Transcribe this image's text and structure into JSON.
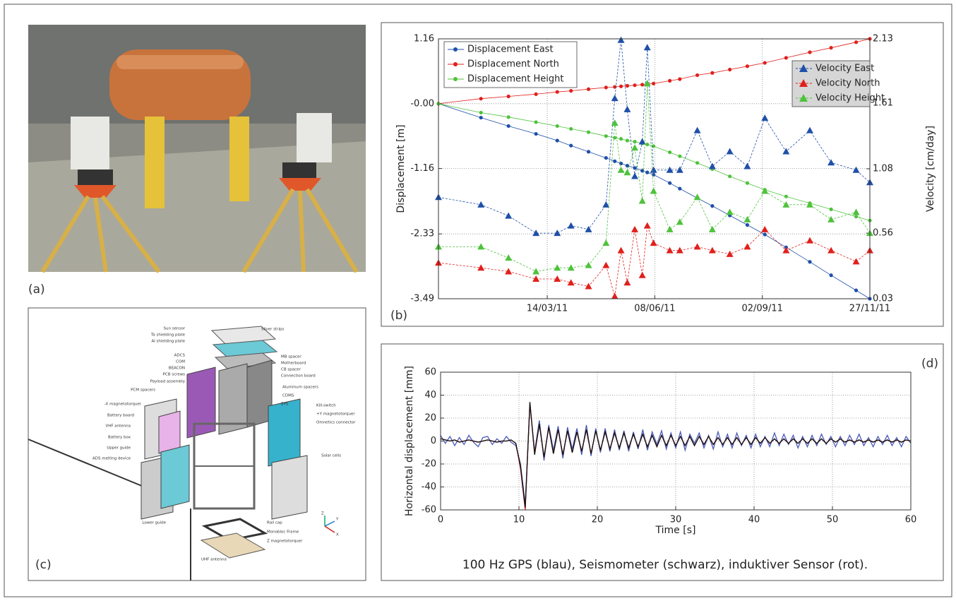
{
  "panel_labels": [
    "(a)",
    "(b)",
    "(c)",
    "(d)"
  ],
  "diagram": {
    "labels": [
      "Sun sensor",
      "Ta shielding plate",
      "Al shielding plate",
      "ADCS",
      "COM",
      "BEACON",
      "PCB screws",
      "Payload assembly",
      "PCM spacers",
      "-X magnetotorquer",
      "Battery board",
      "VHF antenna",
      "Battery box",
      "Upper guide",
      "ADS melting device",
      "Lower guide",
      "Silver strips",
      "MB spacer",
      "Motherboard",
      "CB spacer",
      "Connection board",
      "Aluminum spacers",
      "CDMS",
      "EPS",
      "Kill-switch",
      "+Y magnetotorquer",
      "Omnetics connector",
      "Solar cells",
      "Rail cap",
      "Monobloc Frame",
      "Z magnetotorquer",
      "UHF antenna"
    ],
    "axes": [
      "Z",
      "Y",
      "X"
    ]
  },
  "chart_data": [
    {
      "type": "line",
      "ylabel": "Displacement [m]",
      "y2label": "Velocity [cm/day]",
      "x": [
        "17/12/10",
        "20/01/11",
        "11/02/11",
        "05/03/11",
        "22/03/11",
        "02/04/11",
        "16/04/11",
        "30/04/11",
        "07/05/11",
        "12/05/11",
        "17/05/11",
        "23/05/11",
        "29/05/11",
        "02/06/11",
        "07/06/11",
        "20/06/11",
        "28/06/11",
        "12/07/11",
        "24/07/11",
        "07/08/11",
        "21/08/11",
        "04/09/11",
        "21/09/11",
        "10/10/11",
        "27/10/11",
        "16/11/11",
        "27/11/11"
      ],
      "xlim": [
        "17/12/10",
        "27/11/11"
      ],
      "xticks": [
        "14/03/11",
        "08/06/11",
        "02/09/11",
        "27/11/11"
      ],
      "ylim": [
        -3.49,
        1.16
      ],
      "yticks": [
        -3.49,
        -2.33,
        -1.16,
        {
          "value": 0,
          "label": "-0.00"
        },
        1.16
      ],
      "y2lim": [
        0.03,
        2.13
      ],
      "y2ticks": [
        0.03,
        0.56,
        1.08,
        1.61,
        2.13
      ],
      "grid": true,
      "legend": "upper left",
      "legend2": "upper right",
      "series": [
        {
          "name": "Displacement East",
          "color": "#1f4fa8",
          "marker": "circle",
          "values": [
            0,
            -0.25,
            -0.4,
            -0.54,
            -0.66,
            -0.75,
            -0.86,
            -0.97,
            -1.03,
            -1.07,
            -1.11,
            -1.15,
            -1.2,
            -1.23,
            -1.27,
            -1.42,
            -1.52,
            -1.69,
            -1.83,
            -2.0,
            -2.17,
            -2.34,
            -2.57,
            -2.83,
            -3.07,
            -3.34,
            -3.49
          ]
        },
        {
          "name": "Displacement North",
          "color": "#e0201c",
          "marker": "circle",
          "values": [
            0,
            0.09,
            0.13,
            0.17,
            0.21,
            0.23,
            0.26,
            0.29,
            0.3,
            0.31,
            0.32,
            0.33,
            0.34,
            0.35,
            0.36,
            0.41,
            0.44,
            0.51,
            0.55,
            0.61,
            0.67,
            0.73,
            0.82,
            0.92,
            1.0,
            1.1,
            1.16
          ]
        },
        {
          "name": "Displacement Height",
          "color": "#4fc23c",
          "marker": "circle",
          "values": [
            0,
            -0.16,
            -0.24,
            -0.33,
            -0.4,
            -0.45,
            -0.51,
            -0.58,
            -0.61,
            -0.63,
            -0.66,
            -0.68,
            -0.71,
            -0.73,
            -0.76,
            -0.87,
            -0.94,
            -1.06,
            -1.17,
            -1.3,
            -1.42,
            -1.54,
            -1.66,
            -1.78,
            -1.89,
            -2.02,
            -2.09
          ]
        },
        {
          "name": "Velocity East",
          "color": "#1f4fa8",
          "marker": "triangle",
          "axis": "y2",
          "values": [
            0.85,
            0.79,
            0.7,
            0.56,
            0.56,
            0.62,
            0.59,
            0.79,
            1.65,
            2.12,
            1.56,
            1.02,
            1.3,
            2.06,
            1.07,
            1.07,
            1.07,
            1.39,
            1.1,
            1.22,
            1.1,
            1.49,
            1.22,
            1.39,
            1.13,
            1.07,
            0.97
          ]
        },
        {
          "name": "Velocity North",
          "color": "#e0201c",
          "marker": "triangle",
          "axis": "y2",
          "values": [
            0.32,
            0.28,
            0.25,
            0.19,
            0.19,
            0.16,
            0.13,
            0.3,
            0.05,
            0.42,
            0.16,
            0.59,
            0.22,
            0.62,
            0.48,
            0.42,
            0.42,
            0.45,
            0.42,
            0.39,
            0.45,
            0.59,
            0.42,
            0.5,
            0.42,
            0.33,
            0.42
          ]
        },
        {
          "name": "Velocity Height",
          "color": "#4fc23c",
          "marker": "triangle",
          "axis": "y2",
          "values": [
            0.45,
            0.45,
            0.36,
            0.25,
            0.28,
            0.28,
            0.3,
            0.48,
            1.45,
            1.07,
            1.05,
            1.25,
            0.82,
            1.77,
            0.9,
            0.59,
            0.65,
            0.85,
            0.59,
            0.73,
            0.67,
            0.9,
            0.79,
            0.79,
            0.67,
            0.73,
            0.56
          ]
        }
      ]
    },
    {
      "type": "line",
      "ylabel": "Horizontal displacement [mm]",
      "xlabel": "Time [s]",
      "caption": "100 Hz GPS (blau), Seismometer (schwarz), induktiver Sensor (rot).",
      "x": [
        0,
        0.6,
        1.2,
        1.8,
        2.4,
        3,
        3.6,
        4.2,
        4.8,
        5.4,
        6,
        6.6,
        7.2,
        7.8,
        8.4,
        9,
        9.6,
        10.2,
        10.8,
        11.4,
        12,
        12.6,
        13.2,
        13.8,
        14.4,
        15,
        15.6,
        16.2,
        16.8,
        17.4,
        18,
        18.6,
        19.2,
        19.8,
        20.4,
        21,
        21.6,
        22.2,
        22.8,
        23.4,
        24,
        24.6,
        25.2,
        25.8,
        26.4,
        27,
        27.6,
        28.2,
        28.8,
        29.4,
        30,
        30.6,
        31.2,
        31.8,
        32.4,
        33,
        33.6,
        34.2,
        34.8,
        35.4,
        36,
        36.6,
        37.2,
        37.8,
        38.4,
        39,
        39.6,
        40.2,
        40.8,
        41.4,
        42,
        42.6,
        43.2,
        43.8,
        44.4,
        45,
        45.6,
        46.2,
        46.8,
        47.4,
        48,
        48.6,
        49.2,
        49.8,
        50.4,
        51,
        51.6,
        52.2,
        52.8,
        53.4,
        54,
        54.6,
        55.2,
        55.8,
        56.4,
        57,
        57.6,
        58.2,
        58.8,
        59.4,
        60
      ],
      "xlim": [
        0,
        60
      ],
      "xticks": [
        0,
        10,
        20,
        30,
        40,
        50,
        60
      ],
      "ylim": [
        -60,
        60
      ],
      "yticks": [
        -60,
        -40,
        -20,
        0,
        20,
        40,
        60
      ],
      "grid": true,
      "series": [
        {
          "color": "#4a5bb8",
          "values": [
            5,
            -2,
            4,
            -4,
            3,
            -3,
            5,
            -1,
            -5,
            3,
            4,
            -3,
            2,
            -2,
            4,
            -1,
            -4,
            -20,
            -55,
            32,
            -9,
            18,
            -17,
            14,
            -8,
            13,
            -15,
            12,
            -7,
            11,
            -12,
            14,
            -13,
            11,
            -10,
            11,
            -9,
            10,
            -8,
            9,
            -9,
            8,
            -7,
            10,
            -8,
            8,
            -3,
            9,
            -7,
            7,
            -6,
            8,
            -8,
            6,
            -2,
            7,
            -6,
            5,
            -7,
            8,
            -5,
            6,
            -6,
            7,
            -4,
            5,
            -6,
            6,
            -5,
            4,
            -5,
            7,
            -4,
            6,
            -3,
            5,
            -6,
            4,
            -5,
            5,
            -4,
            6,
            -3,
            4,
            -5,
            4,
            -4,
            5,
            -3,
            6,
            -4,
            3,
            -5,
            4,
            -3,
            5,
            -4,
            3,
            -5,
            4,
            -2
          ]
        },
        {
          "color": "#d42020",
          "values": [
            2,
            1,
            0,
            1,
            -1,
            0,
            1,
            0,
            -1,
            0,
            1,
            0,
            -1,
            0,
            0,
            1,
            -2,
            -24,
            -60,
            33,
            -10,
            14,
            -14,
            12,
            -11,
            10,
            -12,
            9,
            -10,
            8,
            -9,
            10,
            -11,
            9,
            -8,
            8,
            -7,
            7,
            -6,
            7,
            -6,
            6,
            -5,
            6,
            -5,
            5,
            -5,
            5,
            -4,
            5,
            -4,
            4,
            -4,
            4,
            -4,
            4,
            -3,
            4,
            -3,
            3,
            -3,
            3,
            -3,
            3,
            -3,
            3,
            -3,
            3,
            -2,
            3,
            -2,
            2,
            -2,
            2,
            -2,
            2,
            -2,
            2,
            -2,
            2,
            -2,
            2,
            -2,
            2,
            -1,
            2,
            -1,
            1,
            -1,
            1,
            -1,
            1,
            -1,
            1,
            -1,
            1,
            -1,
            1,
            -1,
            1,
            0
          ]
        },
        {
          "color": "#111111",
          "values": [
            2,
            1,
            0,
            1,
            -1,
            0,
            1,
            0,
            -1,
            0,
            1,
            0,
            -1,
            0,
            0,
            1,
            -2,
            -22,
            -58,
            34,
            -12,
            15,
            -14,
            12,
            -11,
            10,
            -12,
            9,
            -10,
            8,
            -9,
            10,
            -11,
            9,
            -8,
            8,
            -7,
            7,
            -6,
            7,
            -6,
            6,
            -5,
            6,
            -5,
            5,
            -5,
            5,
            -4,
            5,
            -4,
            4,
            -4,
            4,
            -4,
            4,
            -3,
            4,
            -3,
            3,
            -3,
            3,
            -3,
            3,
            -3,
            3,
            -3,
            3,
            -2,
            3,
            -2,
            2,
            -2,
            2,
            -2,
            2,
            -2,
            2,
            -2,
            2,
            -2,
            2,
            -2,
            2,
            -1,
            2,
            -1,
            1,
            -1,
            1,
            -1,
            1,
            -1,
            1,
            -1,
            1,
            -1,
            1,
            -1,
            1,
            0
          ]
        }
      ]
    }
  ]
}
